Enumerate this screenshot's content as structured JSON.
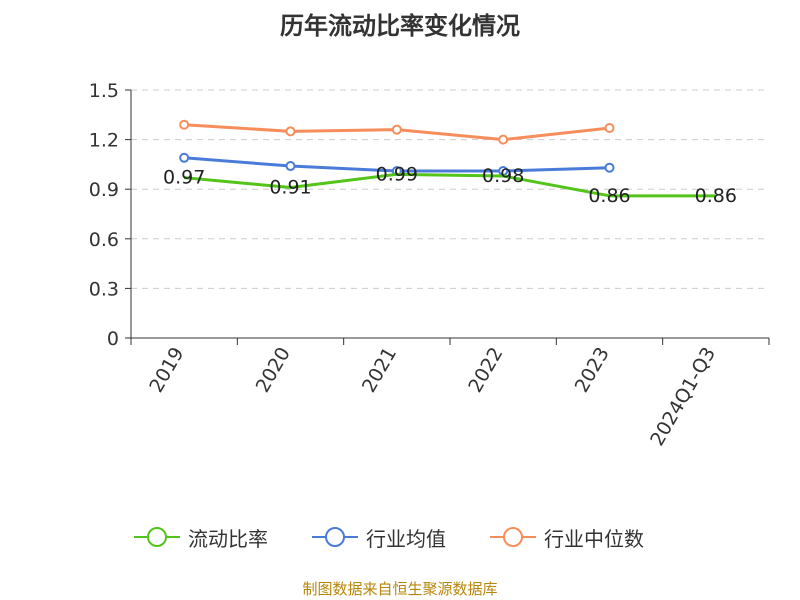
{
  "title": "历年流动比率变化情况",
  "source": "制图数据来自恒生聚源数据库",
  "legend": {
    "current_ratio": "流动比率",
    "industry_mean": "行业均值",
    "industry_median": "行业中位数"
  },
  "chart_data": {
    "type": "line",
    "title": "历年流动比率变化情况",
    "categories": [
      "2019",
      "2020",
      "2021",
      "2022",
      "2023",
      "2024Q1-Q3"
    ],
    "ylim": [
      0,
      1.5
    ],
    "yticks": [
      "0",
      "0.3",
      "0.6",
      "0.9",
      "1.2",
      "1.5"
    ],
    "grid": true,
    "legend_position": "bottom",
    "series": [
      {
        "name": "流动比率",
        "color": "#52c41a",
        "values": [
          0.97,
          0.91,
          0.99,
          0.98,
          0.86,
          0.86
        ],
        "labels": [
          "0.97",
          "0.91",
          "0.99",
          "0.98",
          "0.86",
          "0.86"
        ],
        "show_markers": false
      },
      {
        "name": "行业均值",
        "color": "#4a7bd9",
        "values": [
          1.09,
          1.04,
          1.01,
          1.01,
          1.03,
          null
        ],
        "show_markers": true
      },
      {
        "name": "行业中位数",
        "color": "#f78d5a",
        "values": [
          1.29,
          1.25,
          1.26,
          1.2,
          1.27,
          null
        ],
        "show_markers": true
      }
    ]
  }
}
